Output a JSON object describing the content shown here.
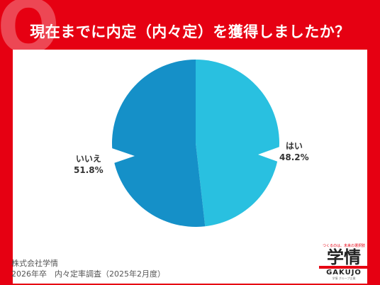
{
  "header": {
    "title": "現在までに内定（内々定）を獲得しましたか？",
    "badge": "Q"
  },
  "chart_data": {
    "type": "pie",
    "slices": [
      {
        "label": "はい",
        "value": 48.2,
        "value_label": "48.2%",
        "color": "#29c0e0"
      },
      {
        "label": "いいえ",
        "value": 51.8,
        "value_label": "51.8%",
        "color": "#1590c8"
      }
    ]
  },
  "footer": {
    "company": "株式会社学情",
    "survey": "2026年卒　内々定率調査（2025年2月度）"
  },
  "logo": {
    "tagline": "つくるのは、未来の選択肢",
    "main": "学情",
    "name": "GAKUJO",
    "sub": "学情 グループ企業"
  }
}
